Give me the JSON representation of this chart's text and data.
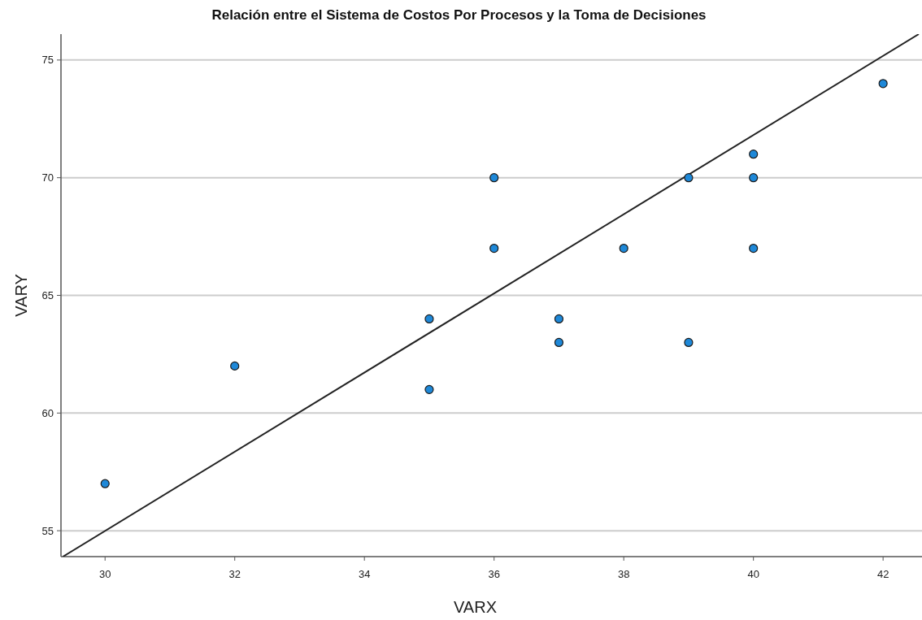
{
  "chart_data": {
    "type": "scatter",
    "title": "Relación entre el Sistema de Costos Por Procesos y la Toma de Decisiones",
    "xlabel": "VARX",
    "ylabel": "VARY",
    "series": [
      {
        "color": "#1e88d8",
        "marker": "circle",
        "x": [
          30,
          32,
          35,
          35,
          36,
          36,
          37,
          37,
          38,
          39,
          39,
          40,
          40,
          40,
          42
        ],
        "values": [
          57,
          62,
          64,
          61,
          70,
          67,
          64,
          63,
          67,
          70,
          63,
          71,
          70,
          67,
          74
        ]
      },
      {
        "type": "line",
        "color": "#222222",
        "x": [
          29.35,
          42.55
        ],
        "values": [
          53.9,
          76.1
        ]
      }
    ],
    "xlim": [
      29.32,
      42.6
    ],
    "ylim": [
      53.9,
      76.1
    ],
    "xticks": [
      30,
      32,
      34,
      36,
      38,
      40,
      42
    ],
    "yticks": [
      55,
      60,
      65,
      70,
      75
    ],
    "grid": "y"
  }
}
